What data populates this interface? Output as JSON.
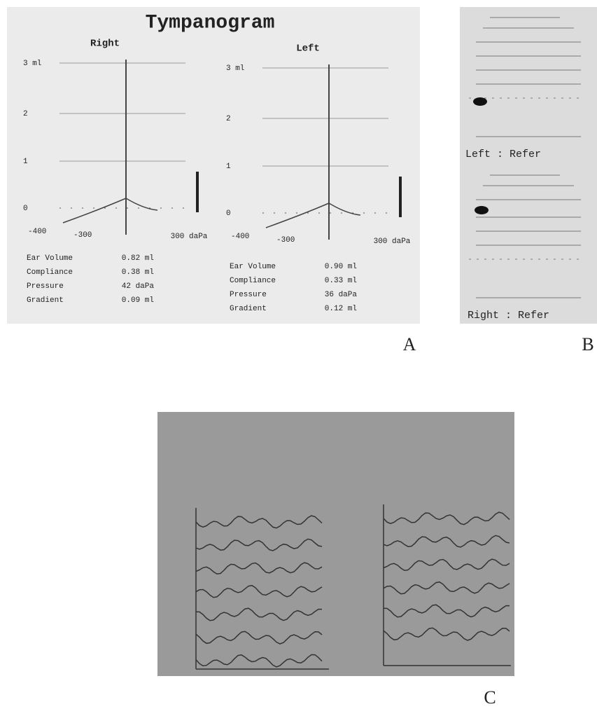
{
  "panel_labels": [
    "A",
    "B",
    "C"
  ],
  "tympanogram": {
    "title": "Tympanogram",
    "ears": [
      {
        "name": "Right",
        "yticks": [
          "3 ml",
          "2",
          "1",
          "0"
        ],
        "xticks": [
          "-400",
          "-300",
          "300 daPa"
        ],
        "measures": [
          [
            "Ear Volume",
            "0.82 ml"
          ],
          [
            "Compliance",
            "0.38 ml"
          ],
          [
            "Pressure",
            "42 daPa"
          ],
          [
            "Gradient",
            "0.09 ml"
          ]
        ]
      },
      {
        "name": "Left",
        "yticks": [
          "3 ml",
          "2",
          "1",
          "0"
        ],
        "xticks": [
          "-400",
          "-300",
          "300 daPa"
        ],
        "measures": [
          [
            "Ear Volume",
            "0.90 ml"
          ],
          [
            "Compliance",
            "0.33 ml"
          ],
          [
            "Pressure",
            "36 daPa"
          ],
          [
            "Gradient",
            "0.12 ml"
          ]
        ]
      }
    ]
  },
  "screening": {
    "results": [
      "Left : Refer",
      "Right : Refer"
    ]
  }
}
